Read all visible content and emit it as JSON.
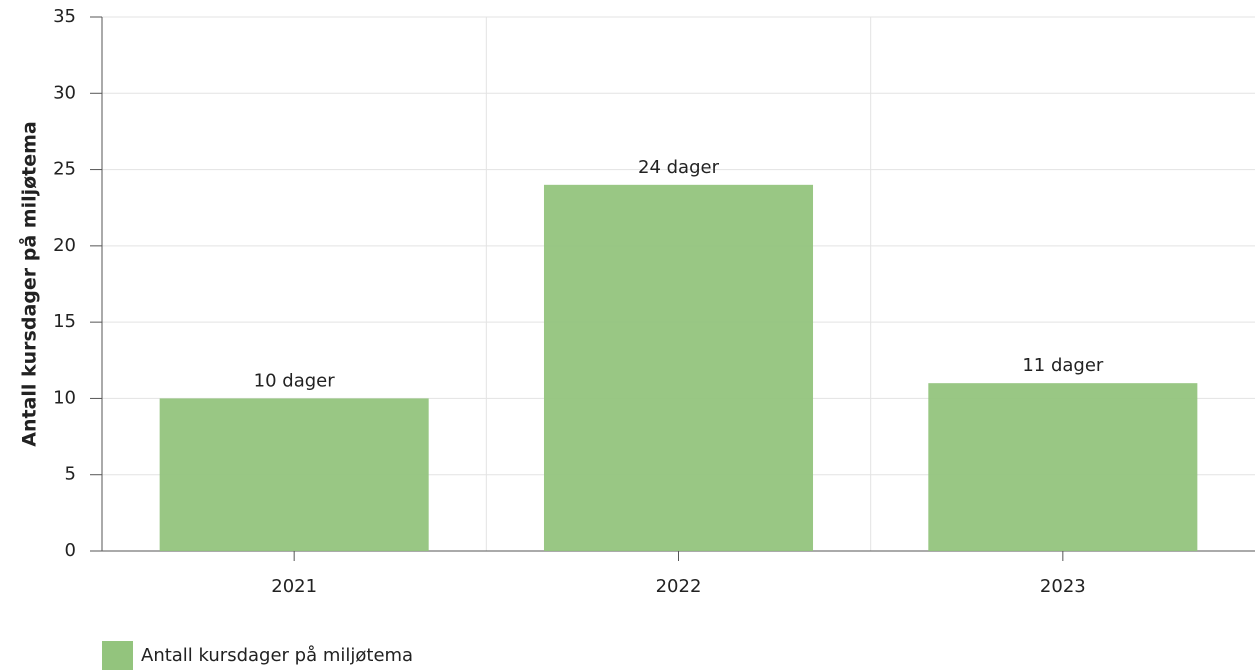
{
  "chart_data": {
    "type": "bar",
    "y_label": "Antall kursdager på miljøtema",
    "categories": [
      "2021",
      "2022",
      "2023"
    ],
    "series": [
      {
        "name": "Antall kursdager på miljøtema",
        "color": "#93c47d",
        "values": [
          10,
          24,
          11
        ],
        "value_labels": [
          "10 dager",
          "24 dager",
          "11 dager"
        ]
      }
    ],
    "ylim": [
      0,
      35
    ],
    "yticks": [
      0,
      5,
      10,
      15,
      20,
      25,
      30,
      35
    ],
    "grid": true,
    "legend": "bottom-left"
  }
}
